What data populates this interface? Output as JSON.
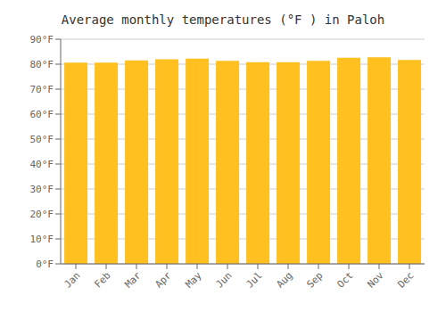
{
  "chart_data": {
    "type": "bar",
    "title": "Average monthly temperatures (°F ) in Paloh",
    "categories": [
      "Jan",
      "Feb",
      "Mar",
      "Apr",
      "May",
      "Jun",
      "Jul",
      "Aug",
      "Sep",
      "Oct",
      "Nov",
      "Dec"
    ],
    "values": [
      80.6,
      80.6,
      81.5,
      82.0,
      82.2,
      81.3,
      80.8,
      80.8,
      81.3,
      82.6,
      82.8,
      81.7
    ],
    "color": "#FFC020",
    "ylim": [
      0,
      90
    ],
    "yticks": [
      {
        "value": 0,
        "label": "0°F"
      },
      {
        "value": 10,
        "label": "10°F"
      },
      {
        "value": 20,
        "label": "20°F"
      },
      {
        "value": 30,
        "label": "30°F"
      },
      {
        "value": 40,
        "label": "40°F"
      },
      {
        "value": 50,
        "label": "50°F"
      },
      {
        "value": 60,
        "label": "60°F"
      },
      {
        "value": 70,
        "label": "70°F"
      },
      {
        "value": 80,
        "label": "80°F"
      },
      {
        "value": 90,
        "label": "90°F"
      }
    ],
    "grid": true
  }
}
